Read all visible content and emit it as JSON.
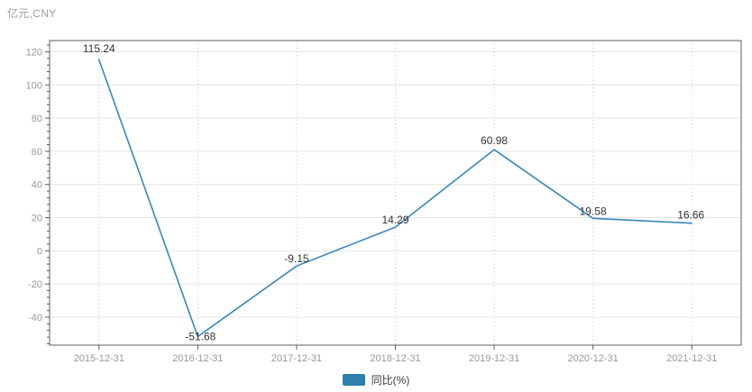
{
  "chart_data": {
    "type": "line",
    "title": "亿元,CNY",
    "xlabel": "",
    "ylabel": "",
    "categories": [
      "2015-12-31",
      "2016-12-31",
      "2017-12-31",
      "2018-12-31",
      "2019-12-31",
      "2020-12-31",
      "2021-12-31"
    ],
    "series": [
      {
        "name": "同比(%)",
        "values": [
          115.24,
          -51.68,
          -9.15,
          14.29,
          60.98,
          19.58,
          16.66
        ],
        "data_labels": [
          "115.24",
          "-51.68",
          "-9.15",
          "14.29",
          "60.98",
          "19.58",
          "16.66"
        ]
      }
    ],
    "ylim": [
      -56.85,
      126.76
    ],
    "yticks": [
      -40,
      -20,
      0,
      20,
      40,
      60,
      80,
      100,
      120
    ],
    "minor_tick_step": 4,
    "grid": true,
    "legend_position": "bottom",
    "colors": {
      "line": "#3787bd",
      "legend_swatch": "#2e7fab",
      "axis": "#5c5c5c",
      "grid_h": "#e6e6e6",
      "grid_v": "#c8c8c8",
      "tick_label": "#999999",
      "data_label": "#333333",
      "title": "#9e9e9e"
    }
  }
}
